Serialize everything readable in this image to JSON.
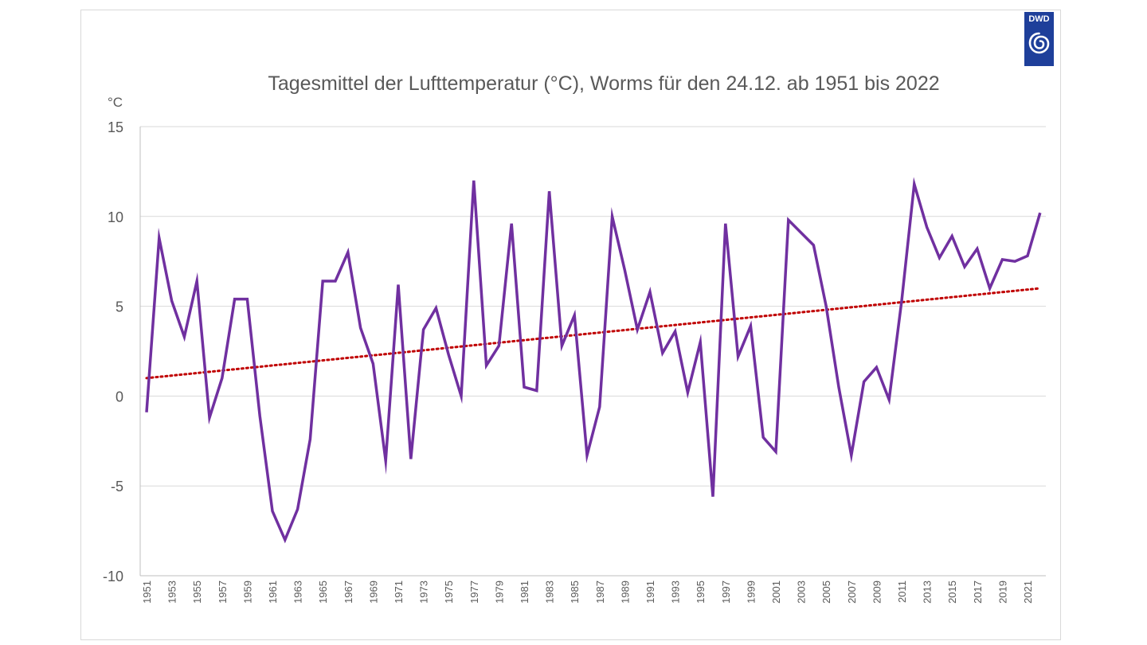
{
  "logo": {
    "text": "DWD",
    "icon": "dwd-swirl-icon",
    "color": "#1e3f9a"
  },
  "chart_data": {
    "type": "line",
    "title": "Tagesmittel der Lufttemperatur (°C), Worms für den 24.12. ab 1951 bis 2022",
    "ylabel": "°C",
    "xlabel": "",
    "ylim": [
      -10,
      15
    ],
    "yticks": [
      "15",
      "10",
      "5",
      "0",
      "-5",
      "-10"
    ],
    "ytick_values": [
      15,
      10,
      5,
      0,
      -5,
      -10
    ],
    "grid": true,
    "x": [
      1951,
      1952,
      1953,
      1954,
      1955,
      1956,
      1957,
      1958,
      1959,
      1960,
      1961,
      1962,
      1963,
      1964,
      1965,
      1966,
      1967,
      1968,
      1969,
      1970,
      1971,
      1972,
      1973,
      1974,
      1975,
      1976,
      1977,
      1978,
      1979,
      1980,
      1981,
      1982,
      1983,
      1984,
      1985,
      1986,
      1987,
      1988,
      1989,
      1990,
      1991,
      1992,
      1993,
      1994,
      1995,
      1996,
      1997,
      1998,
      1999,
      2000,
      2001,
      2002,
      2003,
      2004,
      2005,
      2006,
      2007,
      2008,
      2009,
      2010,
      2011,
      2012,
      2013,
      2014,
      2015,
      2016,
      2017,
      2018,
      2019,
      2020,
      2021,
      2022
    ],
    "xtick_labels": [
      "1951",
      "1953",
      "1955",
      "1957",
      "1959",
      "1961",
      "1963",
      "1965",
      "1967",
      "1969",
      "1971",
      "1973",
      "1975",
      "1977",
      "1979",
      "1981",
      "1983",
      "1985",
      "1987",
      "1989",
      "1991",
      "1993",
      "1995",
      "1997",
      "1999",
      "2001",
      "2003",
      "2005",
      "2007",
      "2009",
      "2011",
      "2013",
      "2015",
      "2017",
      "2019",
      "2021"
    ],
    "series": [
      {
        "color": "#7030a0",
        "values": [
          -0.9,
          8.8,
          5.3,
          3.3,
          6.4,
          -1.2,
          1.0,
          5.4,
          5.4,
          -1.1,
          -6.4,
          -8.0,
          -6.3,
          -2.4,
          6.4,
          6.4,
          8.0,
          3.8,
          1.8,
          -3.6,
          6.2,
          -3.5,
          3.7,
          4.9,
          2.3,
          0.0,
          12.0,
          1.7,
          2.8,
          9.6,
          0.5,
          0.3,
          11.4,
          2.8,
          4.5,
          -3.3,
          -0.6,
          10.0,
          7.0,
          3.7,
          5.8,
          2.4,
          3.6,
          0.2,
          3.0,
          -5.6,
          9.6,
          2.2,
          3.9,
          -2.3,
          -3.1,
          9.8,
          9.1,
          8.4,
          5.0,
          0.5,
          -3.3,
          0.8,
          1.6,
          -0.2,
          5.3,
          11.8,
          9.4,
          7.7,
          8.9,
          7.2,
          8.2,
          6.0,
          7.6,
          7.5,
          7.8,
          10.2
        ]
      }
    ],
    "trendline": {
      "type": "linear",
      "color": "#c00000",
      "start": 1.0,
      "end": 6.0
    }
  }
}
